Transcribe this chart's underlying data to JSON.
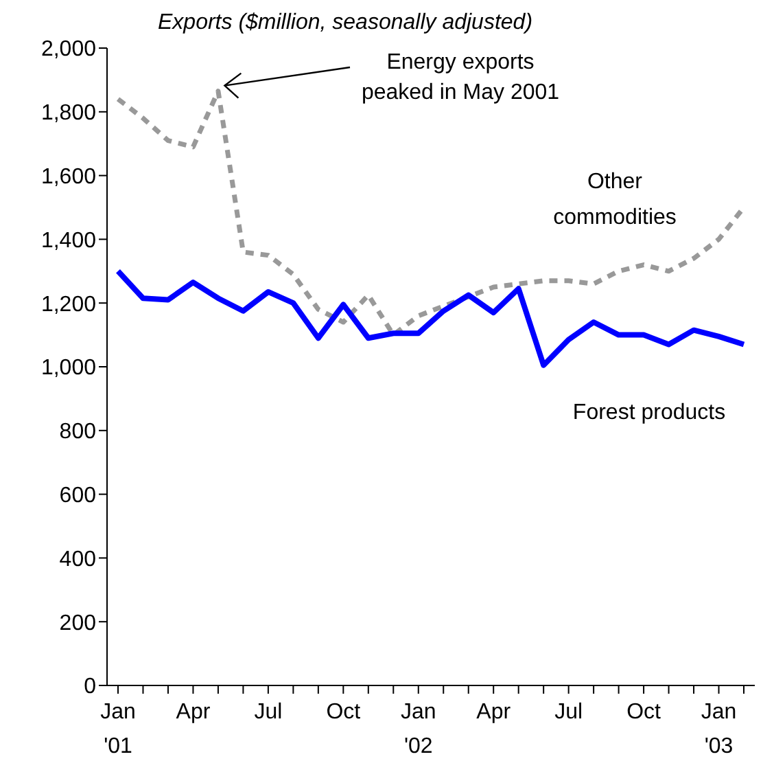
{
  "chart_data": {
    "type": "line",
    "title": "Exports ($million, seasonally adjusted)",
    "categories": [
      "Jan '01",
      null,
      null,
      "Apr",
      null,
      null,
      "Jul",
      null,
      null,
      "Oct",
      null,
      null,
      "Jan '02",
      null,
      null,
      "Apr",
      null,
      null,
      "Jul",
      null,
      null,
      "Oct",
      null,
      null,
      "Jan '03",
      null
    ],
    "series": [
      {
        "name": "Other commodities",
        "color": "#999999",
        "line_style": "dashed",
        "values": [
          1840,
          1780,
          1710,
          1690,
          1865,
          1360,
          1350,
          1290,
          1180,
          1140,
          1225,
          1100,
          1160,
          1190,
          1220,
          1250,
          1260,
          1270,
          1270,
          1260,
          1300,
          1320,
          1300,
          1340,
          1400,
          1500
        ]
      },
      {
        "name": "Forest products",
        "color": "#0000ff",
        "line_style": "solid",
        "values": [
          1300,
          1215,
          1210,
          1265,
          1215,
          1175,
          1235,
          1200,
          1090,
          1195,
          1090,
          1105,
          1105,
          1175,
          1225,
          1170,
          1245,
          1005,
          1085,
          1140,
          1100,
          1100,
          1070,
          1115,
          1095,
          1070
        ]
      }
    ],
    "annotations": [
      "Energy exports\npeaked in May 2001"
    ],
    "ylim": [
      0,
      2000
    ],
    "yticks": [
      0,
      200,
      400,
      600,
      800,
      {
        "value": 1000,
        "label": "1,000"
      },
      {
        "value": 1200,
        "label": "1,200"
      },
      {
        "value": 1400,
        "label": "1,400"
      },
      {
        "value": 1600,
        "label": "1,600"
      },
      {
        "value": 1800,
        "label": "1,800"
      },
      {
        "value": 2000,
        "label": "2,000"
      }
    ],
    "marker": "none"
  }
}
